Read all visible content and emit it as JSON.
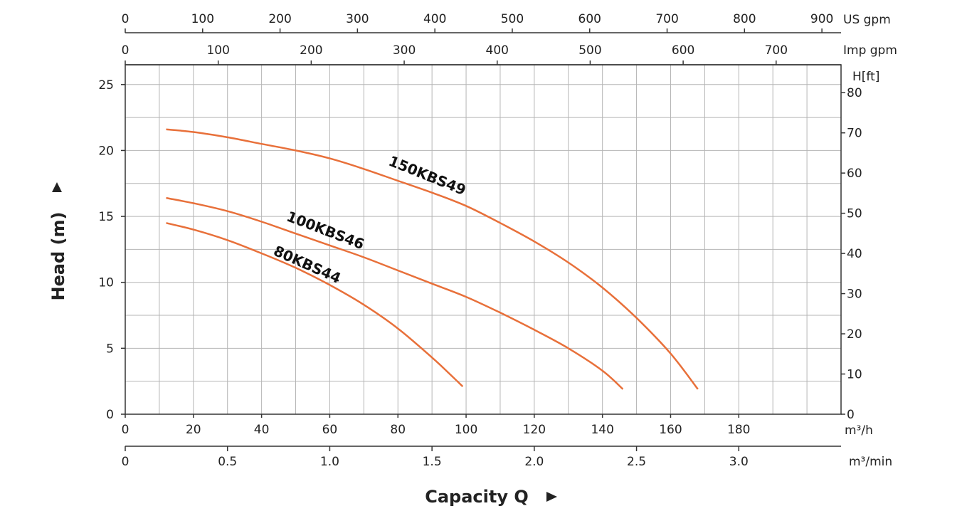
{
  "chart_data": {
    "type": "line",
    "title": "",
    "xlabel": "Capacity Q",
    "ylabel": "Head (m)",
    "colors": {
      "curve": "#e8703a",
      "grid": "#b5b5b5",
      "axis": "#333333"
    },
    "x_axis": {
      "unit": "m³/h",
      "range": [
        0,
        210
      ],
      "ticks": [
        0,
        20,
        40,
        60,
        80,
        100,
        120,
        140,
        160,
        180
      ],
      "tick_labels": [
        "0",
        "20",
        "40",
        "60",
        "80",
        "100",
        "120",
        "140",
        "160",
        "180"
      ]
    },
    "x_axis_min": {
      "unit": "m³/min",
      "ticks": [
        0,
        0.5,
        1.0,
        1.5,
        2.0,
        2.5,
        3.0
      ],
      "tick_labels": [
        "0",
        "0.5",
        "1.0",
        "1.5",
        "2.0",
        "2.5",
        "3.0"
      ]
    },
    "top_axis_us": {
      "unit": "US gpm",
      "ticks": [
        0,
        100,
        200,
        300,
        400,
        500,
        600,
        700,
        800,
        900
      ],
      "tick_labels": [
        "0",
        "100",
        "200",
        "300",
        "400",
        "500",
        "600",
        "700",
        "800",
        "900"
      ]
    },
    "top_axis_imp": {
      "unit": "Imp gpm",
      "ticks": [
        0,
        100,
        200,
        300,
        400,
        500,
        600,
        700
      ],
      "tick_labels": [
        "0",
        "100",
        "200",
        "300",
        "400",
        "500",
        "600",
        "700"
      ]
    },
    "y_axis": {
      "unit": "Head (m)",
      "range": [
        0,
        26.5
      ],
      "ticks": [
        0,
        5,
        10,
        15,
        20,
        25
      ],
      "tick_labels": [
        "0",
        "5",
        "10",
        "15",
        "20",
        "25"
      ]
    },
    "y_axis_right": {
      "unit": "H[ft]",
      "ticks": [
        0,
        10,
        20,
        30,
        40,
        50,
        60,
        70,
        80
      ],
      "tick_labels": [
        "0",
        "10",
        "20",
        "30",
        "40",
        "50",
        "60",
        "70",
        "80"
      ]
    },
    "grid": true,
    "series": [
      {
        "name": "150KBS49",
        "x": [
          12,
          20,
          30,
          40,
          50,
          60,
          70,
          80,
          90,
          100,
          110,
          120,
          130,
          140,
          150,
          160,
          168
        ],
        "y": [
          21.6,
          21.4,
          21.0,
          20.5,
          20.0,
          19.4,
          18.6,
          17.7,
          16.8,
          15.8,
          14.5,
          13.1,
          11.5,
          9.6,
          7.3,
          4.6,
          1.9
        ]
      },
      {
        "name": "100KBS46",
        "x": [
          12,
          20,
          30,
          40,
          50,
          60,
          70,
          80,
          90,
          100,
          110,
          120,
          130,
          140,
          146
        ],
        "y": [
          16.4,
          16.0,
          15.4,
          14.6,
          13.7,
          12.8,
          11.9,
          10.9,
          9.9,
          8.9,
          7.7,
          6.4,
          5.0,
          3.3,
          1.9
        ]
      },
      {
        "name": "80KBS44",
        "x": [
          12,
          20,
          30,
          40,
          50,
          60,
          70,
          80,
          90,
          95,
          99
        ],
        "y": [
          14.5,
          14.0,
          13.2,
          12.2,
          11.1,
          9.8,
          8.3,
          6.5,
          4.3,
          3.1,
          2.1
        ]
      }
    ]
  }
}
